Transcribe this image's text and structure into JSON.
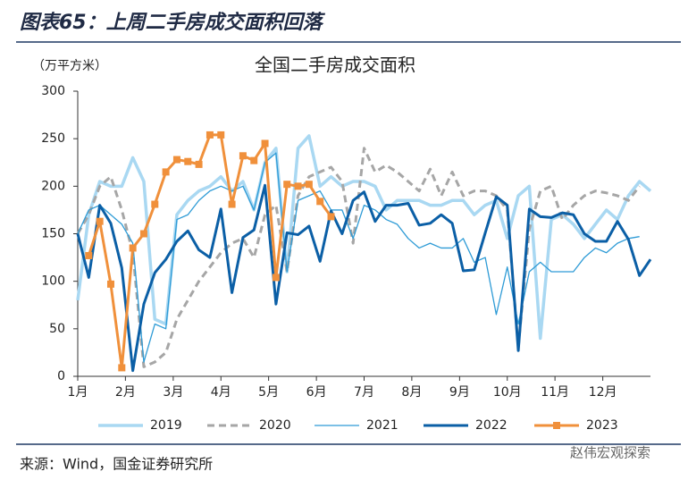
{
  "header": {
    "title": "图表65：上周二手房成交面积回落"
  },
  "chart_data": {
    "type": "line",
    "title": "全国二手房成交面积",
    "y_label": "（万平方米）",
    "x": [
      1,
      2,
      3,
      4,
      5,
      6,
      7,
      8,
      9,
      10,
      11,
      12,
      13,
      14,
      15,
      16,
      17,
      18,
      19,
      20,
      21,
      22,
      23,
      24,
      25,
      26,
      27,
      28,
      29,
      30,
      31,
      32,
      33,
      34,
      35,
      36,
      37,
      38,
      39,
      40,
      41,
      42,
      43,
      44,
      45,
      46,
      47,
      48,
      49,
      50,
      51,
      52,
      53
    ],
    "xlim": [
      1,
      53
    ],
    "xticks": [
      {
        "value": 1,
        "label": "1月"
      },
      {
        "value": 5.33,
        "label": "2月"
      },
      {
        "value": 9.67,
        "label": "3月"
      },
      {
        "value": 14,
        "label": "4月"
      },
      {
        "value": 18.33,
        "label": "5月"
      },
      {
        "value": 22.67,
        "label": "6月"
      },
      {
        "value": 27,
        "label": "7月"
      },
      {
        "value": 31.33,
        "label": "8月"
      },
      {
        "value": 35.67,
        "label": "9月"
      },
      {
        "value": 40,
        "label": "10月"
      },
      {
        "value": 44.33,
        "label": "11月"
      },
      {
        "value": 48.67,
        "label": "12月"
      }
    ],
    "ylim": [
      0,
      300
    ],
    "yticks": [
      0,
      50,
      100,
      150,
      200,
      250,
      300
    ],
    "grid": false,
    "legend": "bottom",
    "series": [
      {
        "name": "2019",
        "color": "#a9d8f2",
        "width": 3.5,
        "values": [
          80,
          170,
          205,
          200,
          200,
          230,
          205,
          60,
          55,
          170,
          185,
          195,
          200,
          210,
          195,
          205,
          175,
          225,
          240,
          110,
          240,
          253,
          200,
          210,
          200,
          205,
          205,
          200,
          175,
          185,
          185,
          185,
          180,
          180,
          185,
          185,
          170,
          180,
          185,
          145,
          190,
          200,
          40,
          165,
          170,
          160,
          145,
          160,
          175,
          165,
          190,
          205,
          195
        ]
      },
      {
        "name": "2020",
        "color": "#a6a6a6",
        "width": 3,
        "dash": true,
        "values": [
          150,
          170,
          200,
          210,
          175,
          130,
          10,
          15,
          25,
          60,
          80,
          100,
          115,
          130,
          140,
          145,
          125,
          170,
          180,
          110,
          190,
          210,
          215,
          220,
          205,
          140,
          240,
          215,
          222,
          215,
          205,
          195,
          218,
          190,
          215,
          190,
          195,
          195,
          190,
          175,
          30,
          155,
          195,
          200,
          165,
          180,
          190,
          195,
          193,
          190,
          185,
          200,
          null
        ]
      },
      {
        "name": "2021",
        "color": "#2e9bd6",
        "width": 1.3,
        "values": [
          150,
          175,
          180,
          170,
          160,
          140,
          15,
          55,
          50,
          165,
          170,
          185,
          195,
          200,
          195,
          200,
          175,
          225,
          235,
          110,
          185,
          190,
          195,
          175,
          175,
          145,
          180,
          175,
          165,
          160,
          145,
          135,
          140,
          135,
          135,
          145,
          120,
          125,
          65,
          115,
          55,
          110,
          120,
          110,
          110,
          110,
          125,
          135,
          130,
          140,
          145,
          147,
          null
        ]
      },
      {
        "name": "2022",
        "color": "#0b5fa6",
        "width": 3,
        "values": [
          150,
          104,
          180,
          161,
          114,
          6,
          76,
          109,
          123,
          142,
          153,
          133,
          125,
          176,
          88,
          146,
          154,
          201,
          76,
          151,
          149,
          158,
          121,
          174,
          150,
          185,
          194,
          163,
          180,
          180,
          182,
          159,
          161,
          170,
          161,
          111,
          112,
          151,
          189,
          180,
          27,
          176,
          168,
          167,
          172,
          170,
          150,
          142,
          142,
          163,
          144,
          106,
          123
        ]
      },
      {
        "name": "2023",
        "color": "#f0903b",
        "width": 3,
        "marker": "square",
        "values": [
          null,
          127,
          163,
          97,
          9,
          135,
          150,
          181,
          215,
          228,
          226,
          223,
          254,
          254,
          181,
          232,
          227,
          245,
          104,
          202,
          200,
          202,
          184,
          168,
          null,
          null,
          null,
          null,
          null,
          null,
          null,
          null,
          null,
          null,
          null,
          null,
          null,
          null,
          null,
          null,
          null,
          null,
          null,
          null,
          null,
          null,
          null,
          null,
          null,
          null,
          null,
          null,
          null
        ]
      }
    ]
  },
  "footer": {
    "source": "来源：Wind，国金证券研究所",
    "watermark": "赵伟宏观探索"
  }
}
